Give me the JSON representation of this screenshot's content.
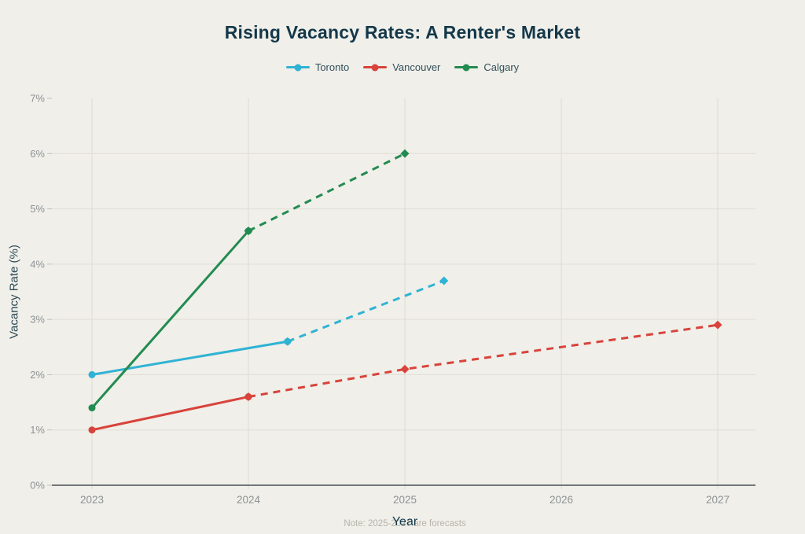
{
  "page": {
    "background_color": "#f0efe9"
  },
  "header": {
    "title": "Rising Vacancy Rates: A Renter's Market",
    "title_color": "#14384a"
  },
  "footnote": "Note: 2025-2027 are forecasts",
  "chart_data": {
    "type": "line",
    "title": "Rising Vacancy Rates: A Renter's Market",
    "xlabel": "Year",
    "ylabel": "Vacancy Rate (%)",
    "note": "Note: 2025-2027 are forecasts",
    "xlim": [
      2022.74,
      2027.25
    ],
    "ylim": [
      0,
      7
    ],
    "x_ticks": [
      2023,
      2024,
      2025,
      2026,
      2027
    ],
    "x_tick_labels": [
      "2023",
      "2024",
      "2025",
      "2026",
      "2027"
    ],
    "y_tick_labels": [
      "0%",
      "1%",
      "2%",
      "3%",
      "4%",
      "5%",
      "6%",
      "7%"
    ],
    "y_gridlines": [
      1,
      2,
      3,
      4,
      5,
      6
    ],
    "grid": true,
    "legend_position": "top-center",
    "solid_means": "actual",
    "dashed_means": "forecast",
    "series": [
      {
        "name": "Toronto",
        "color": "#2fb3d4",
        "actual": [
          [
            2023,
            2.0
          ],
          [
            2024.25,
            2.6
          ]
        ],
        "forecast": [
          [
            2024.25,
            2.6
          ],
          [
            2025.25,
            3.7
          ]
        ]
      },
      {
        "name": "Vancouver",
        "color": "#d8433c",
        "actual": [
          [
            2023,
            1.0
          ],
          [
            2024,
            1.6
          ]
        ],
        "forecast": [
          [
            2024,
            1.6
          ],
          [
            2025,
            2.1
          ],
          [
            2027,
            2.9
          ]
        ]
      },
      {
        "name": "Calgary",
        "color": "#228b51",
        "actual": [
          [
            2023,
            1.4
          ],
          [
            2024,
            4.6
          ]
        ],
        "forecast": [
          [
            2024,
            4.6
          ],
          [
            2025,
            6.0
          ]
        ]
      }
    ],
    "style": {
      "grid_h_color": "#dfddd6",
      "grid_v_color": "#dddbd4",
      "axis_line_color": "#73777b",
      "tick_color": "#c2c0b9",
      "tick_label_color": "#8e9296",
      "axis_title_color": "#2b4a57",
      "legend_text_color": "#31505c",
      "note_color": "#b5b3ab"
    }
  }
}
